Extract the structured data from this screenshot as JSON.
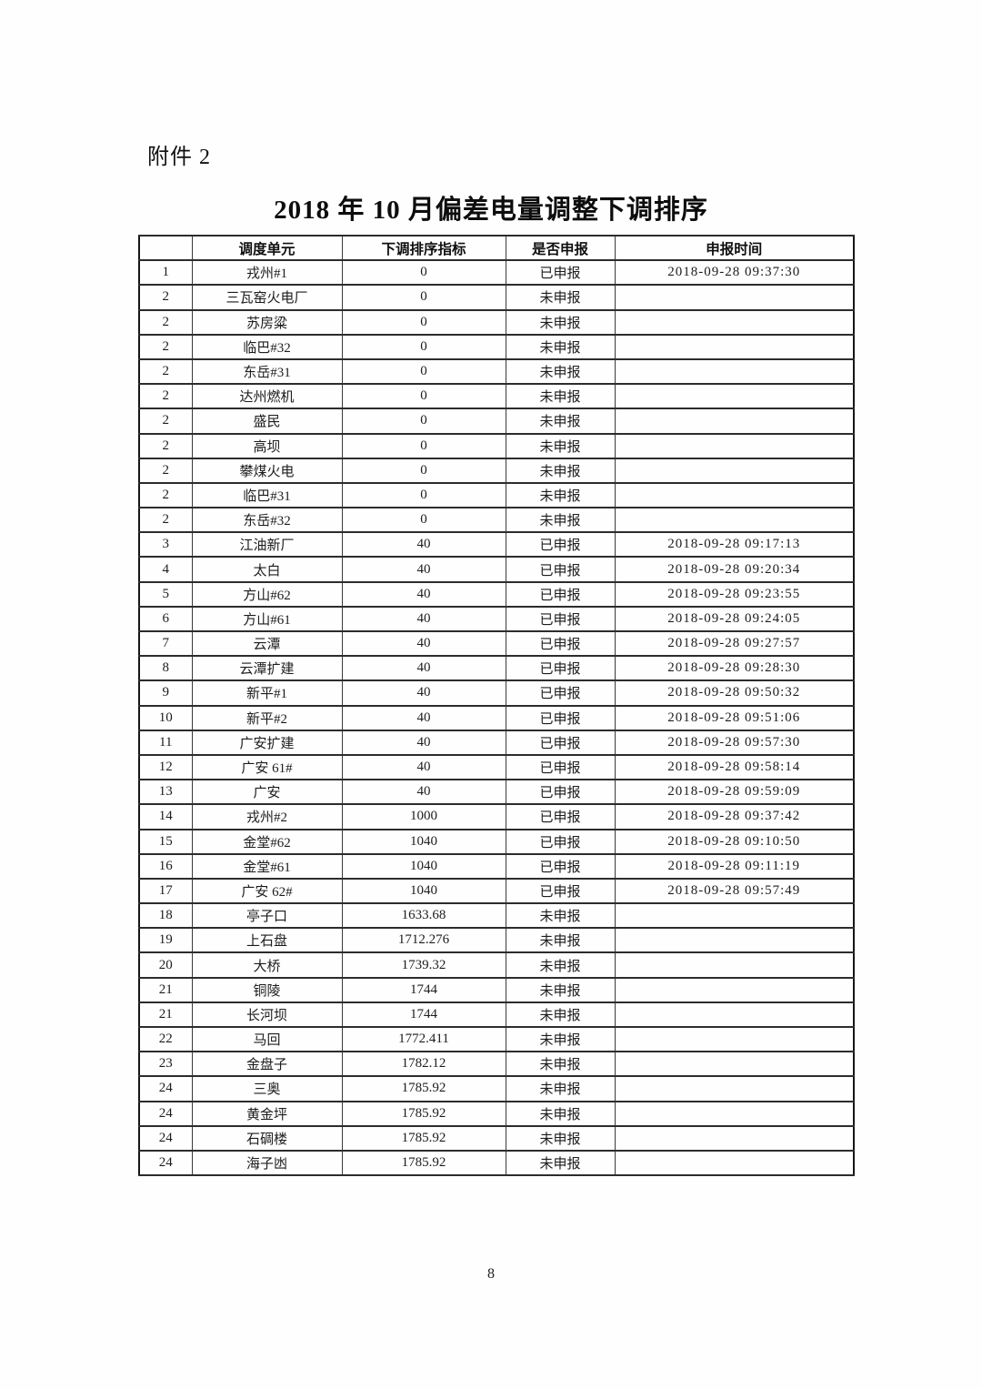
{
  "page": {
    "attachment_label": "附件 2",
    "title": "2018 年 10 月偏差电量调整下调排序",
    "page_number": "8"
  },
  "table": {
    "headers": [
      "",
      "调度单元",
      "下调排序指标",
      "是否申报",
      "申报时间"
    ],
    "rows": [
      [
        "1",
        "戎州#1",
        "0",
        "已申报",
        "2018-09-28 09:37:30"
      ],
      [
        "2",
        "三瓦窑火电厂",
        "0",
        "未申报",
        ""
      ],
      [
        "2",
        "苏房粱",
        "0",
        "未申报",
        ""
      ],
      [
        "2",
        "临巴#32",
        "0",
        "未申报",
        ""
      ],
      [
        "2",
        "东岳#31",
        "0",
        "未申报",
        ""
      ],
      [
        "2",
        "达州燃机",
        "0",
        "未申报",
        ""
      ],
      [
        "2",
        "盛民",
        "0",
        "未申报",
        ""
      ],
      [
        "2",
        "高坝",
        "0",
        "未申报",
        ""
      ],
      [
        "2",
        "攀煤火电",
        "0",
        "未申报",
        ""
      ],
      [
        "2",
        "临巴#31",
        "0",
        "未申报",
        ""
      ],
      [
        "2",
        "东岳#32",
        "0",
        "未申报",
        ""
      ],
      [
        "3",
        "江油新厂",
        "40",
        "已申报",
        "2018-09-28 09:17:13"
      ],
      [
        "4",
        "太白",
        "40",
        "已申报",
        "2018-09-28 09:20:34"
      ],
      [
        "5",
        "方山#62",
        "40",
        "已申报",
        "2018-09-28 09:23:55"
      ],
      [
        "6",
        "方山#61",
        "40",
        "已申报",
        "2018-09-28 09:24:05"
      ],
      [
        "7",
        "云潭",
        "40",
        "已申报",
        "2018-09-28 09:27:57"
      ],
      [
        "8",
        "云潭扩建",
        "40",
        "已申报",
        "2018-09-28 09:28:30"
      ],
      [
        "9",
        "新平#1",
        "40",
        "已申报",
        "2018-09-28 09:50:32"
      ],
      [
        "10",
        "新平#2",
        "40",
        "已申报",
        "2018-09-28 09:51:06"
      ],
      [
        "11",
        "广安扩建",
        "40",
        "已申报",
        "2018-09-28 09:57:30"
      ],
      [
        "12",
        "广安 61#",
        "40",
        "已申报",
        "2018-09-28 09:58:14"
      ],
      [
        "13",
        "广安",
        "40",
        "已申报",
        "2018-09-28 09:59:09"
      ],
      [
        "14",
        "戎州#2",
        "1000",
        "已申报",
        "2018-09-28 09:37:42"
      ],
      [
        "15",
        "金堂#62",
        "1040",
        "已申报",
        "2018-09-28 09:10:50"
      ],
      [
        "16",
        "金堂#61",
        "1040",
        "已申报",
        "2018-09-28 09:11:19"
      ],
      [
        "17",
        "广安 62#",
        "1040",
        "已申报",
        "2018-09-28 09:57:49"
      ],
      [
        "18",
        "亭子口",
        "1633.68",
        "未申报",
        ""
      ],
      [
        "19",
        "上石盘",
        "1712.276",
        "未申报",
        ""
      ],
      [
        "20",
        "大桥",
        "1739.32",
        "未申报",
        ""
      ],
      [
        "21",
        "铜陵",
        "1744",
        "未申报",
        ""
      ],
      [
        "21",
        "长河坝",
        "1744",
        "未申报",
        ""
      ],
      [
        "22",
        "马回",
        "1772.411",
        "未申报",
        ""
      ],
      [
        "23",
        "金盘子",
        "1782.12",
        "未申报",
        ""
      ],
      [
        "24",
        "三奥",
        "1785.92",
        "未申报",
        ""
      ],
      [
        "24",
        "黄金坪",
        "1785.92",
        "未申报",
        ""
      ],
      [
        "24",
        "石碉楼",
        "1785.92",
        "未申报",
        ""
      ],
      [
        "24",
        "海子凼",
        "1785.92",
        "未申报",
        ""
      ]
    ]
  }
}
